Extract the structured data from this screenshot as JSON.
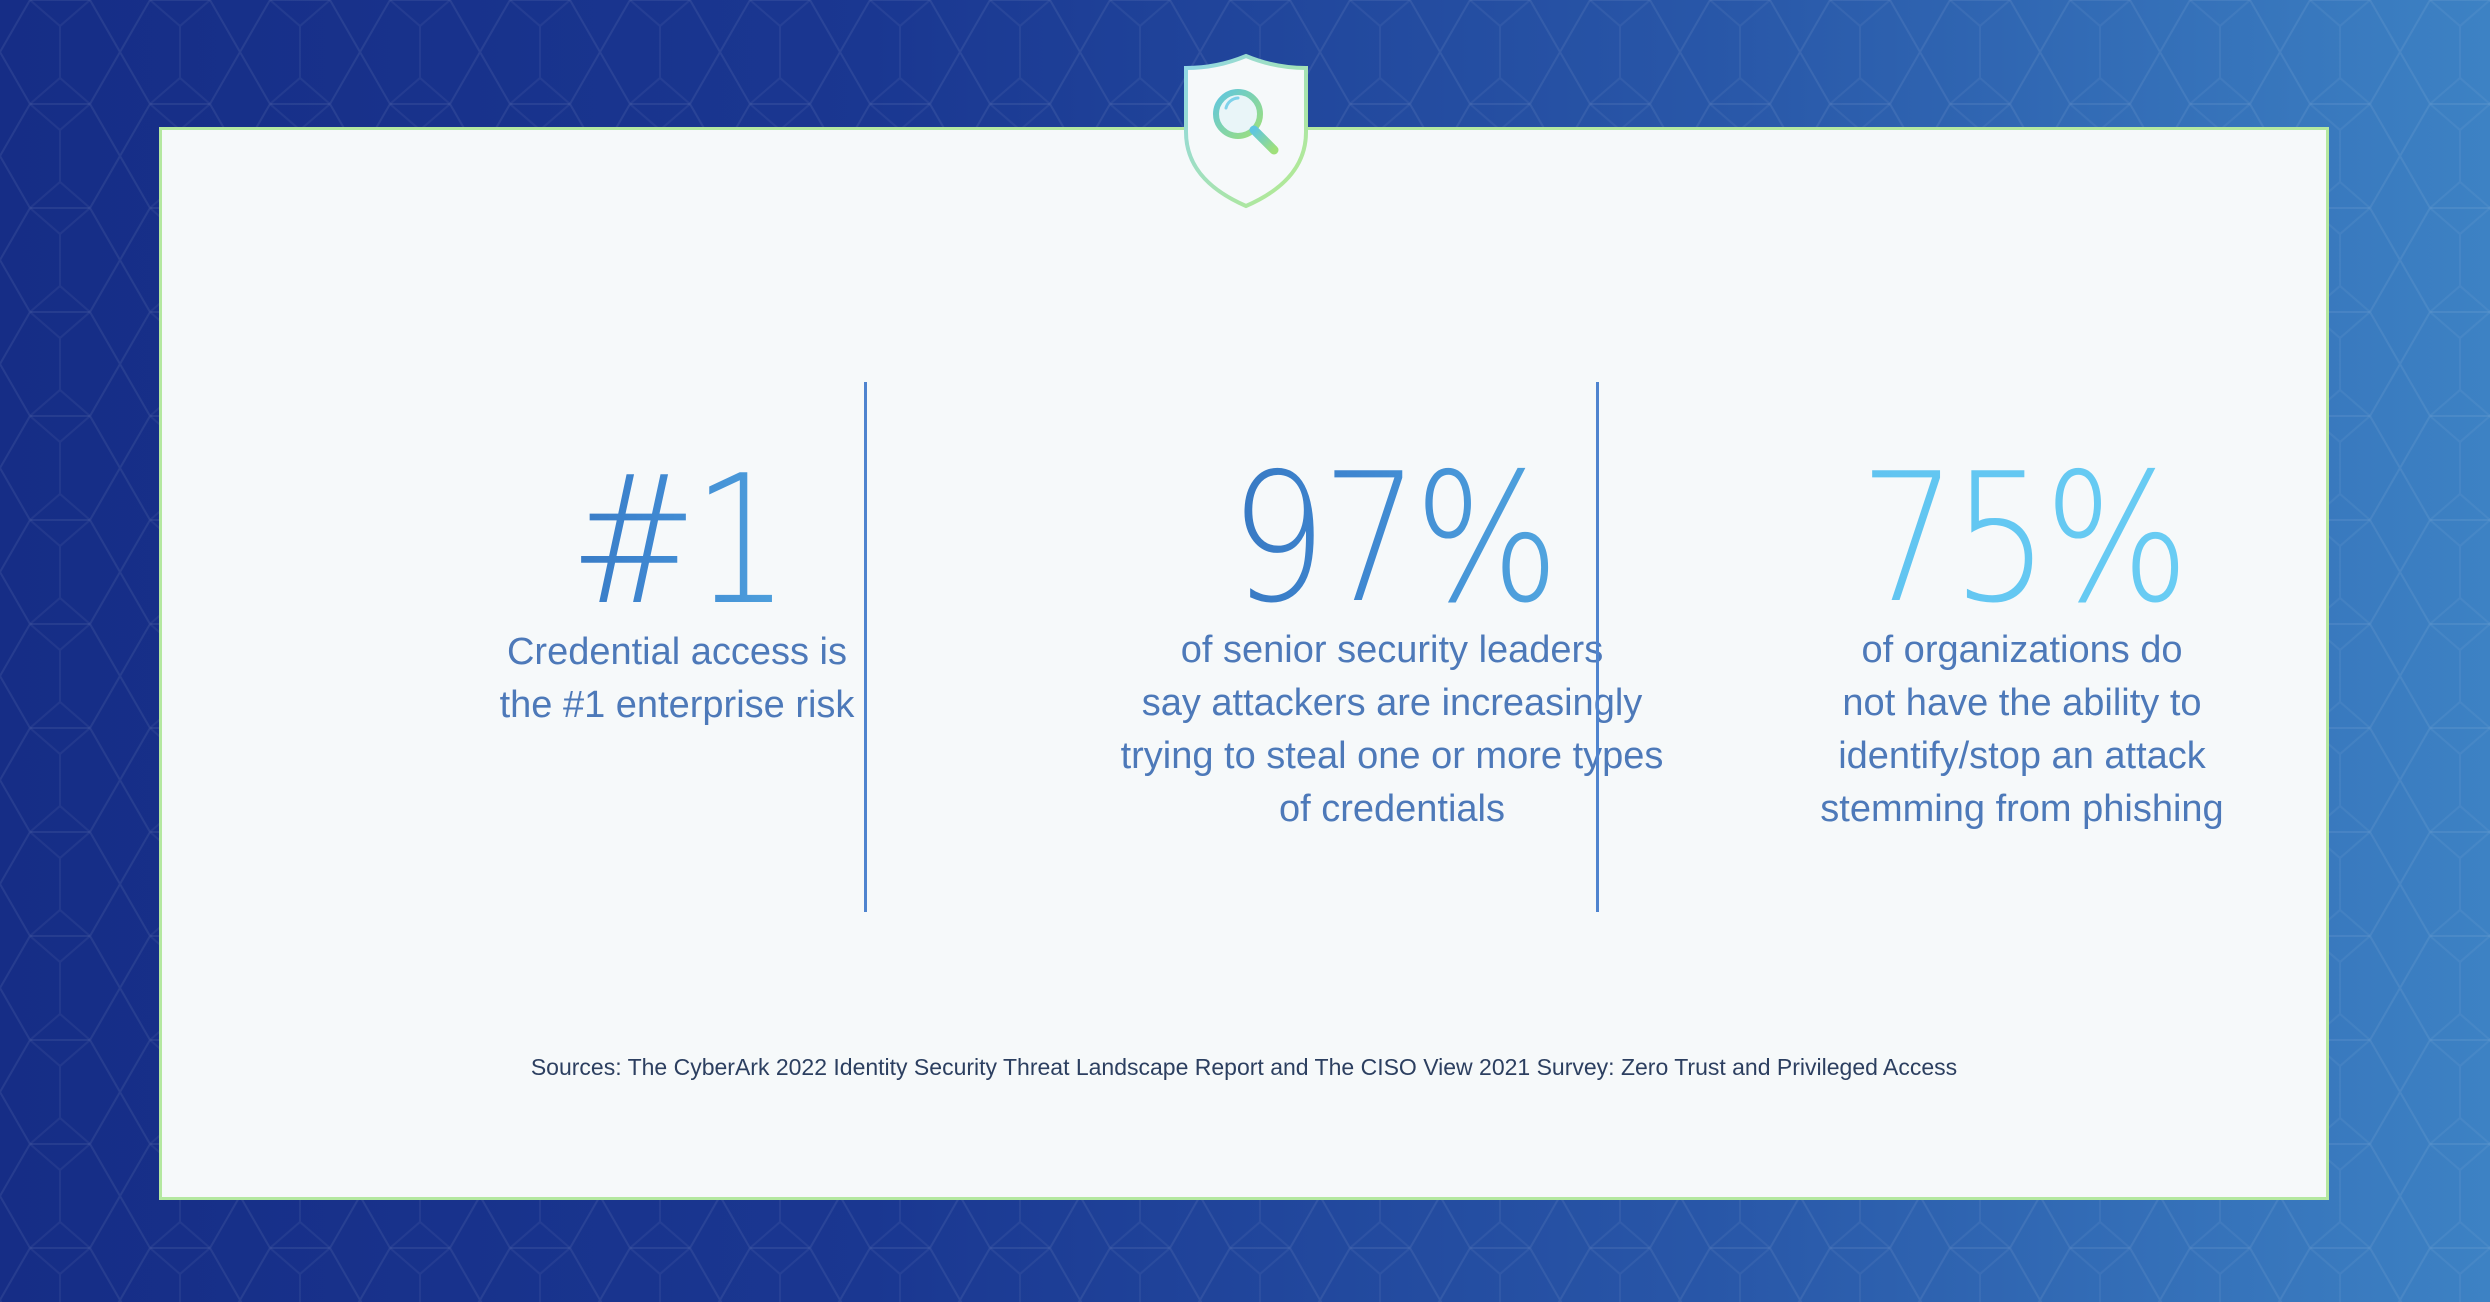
{
  "colors": {
    "background_dark": "#162d86",
    "background_light": "#3d82c4",
    "card": "#f6f9fa",
    "card_border": "#b4e8a0",
    "accent_blue": "#4d79b9",
    "accent_cyan": "#66c8f0"
  },
  "badge": {
    "icon": "magnifier-shield-icon"
  },
  "stats": [
    {
      "value": "#1",
      "lines": [
        "Credential access is",
        "the #1 enterprise risk"
      ]
    },
    {
      "value": "97%",
      "lines": [
        "of senior security leaders",
        "say attackers are increasingly",
        "trying to steal one or more types",
        "of credentials"
      ]
    },
    {
      "value": "75%",
      "lines": [
        "of organizations do",
        "not have the ability to",
        "identify/stop an attack",
        "stemming from phishing"
      ]
    }
  ],
  "sources": "Sources: The CyberArk 2022 Identity Security Threat Landscape Report and The CISO View 2021 Survey: Zero Trust and Privileged Access"
}
